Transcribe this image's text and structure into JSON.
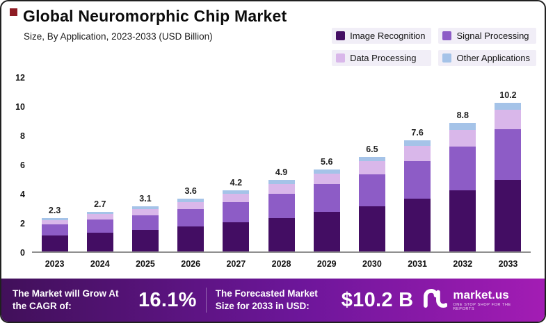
{
  "header": {
    "title": "Global Neuromorphic Chip Market",
    "subtitle": "Size, By Application, 2023-2033 (USD Billion)"
  },
  "chart_data": {
    "type": "bar",
    "stacked": true,
    "title": "Global Neuromorphic Chip Market",
    "subtitle": "Size, By Application, 2023-2033 (USD Billion)",
    "unit": "USD Billion",
    "categories": [
      "2023",
      "2024",
      "2025",
      "2026",
      "2027",
      "2028",
      "2029",
      "2030",
      "2031",
      "2032",
      "2033"
    ],
    "totals": [
      2.3,
      2.7,
      3.1,
      3.6,
      4.2,
      4.9,
      5.6,
      6.5,
      7.6,
      8.8,
      10.2
    ],
    "series": [
      {
        "name": "Image Recognition",
        "color": "#430d63",
        "values": [
          1.1,
          1.3,
          1.5,
          1.7,
          2.0,
          2.3,
          2.7,
          3.1,
          3.6,
          4.2,
          4.9
        ]
      },
      {
        "name": "Signal Processing",
        "color": "#8d5cc6",
        "values": [
          0.75,
          0.9,
          1.0,
          1.2,
          1.4,
          1.65,
          1.9,
          2.2,
          2.6,
          3.0,
          3.5
        ]
      },
      {
        "name": "Data Processing",
        "color": "#d9b7ea",
        "values": [
          0.3,
          0.35,
          0.42,
          0.5,
          0.57,
          0.67,
          0.72,
          0.88,
          1.02,
          1.15,
          1.3
        ]
      },
      {
        "name": "Other Applications",
        "color": "#a5c3e8",
        "values": [
          0.15,
          0.15,
          0.18,
          0.2,
          0.23,
          0.28,
          0.28,
          0.32,
          0.38,
          0.45,
          0.5
        ]
      }
    ],
    "ylim": [
      0,
      12
    ],
    "yticks": [
      0,
      2,
      4,
      6,
      8,
      10,
      12
    ],
    "grid": false,
    "legend_position": "top-right"
  },
  "footer": {
    "cagr_label": "The Market will Grow At the CAGR of:",
    "cagr_value": "16.1%",
    "forecast_label": "The Forecasted Market Size for 2033 in USD:",
    "forecast_value": "$10.2 B",
    "brand": {
      "name": "market.us",
      "tagline": "ONE STOP SHOP FOR THE REPORTS"
    }
  },
  "colors": {
    "title_bullet": "#8e1c24",
    "banner_gradient_start": "#41105a",
    "banner_gradient_end": "#a31cb4"
  }
}
